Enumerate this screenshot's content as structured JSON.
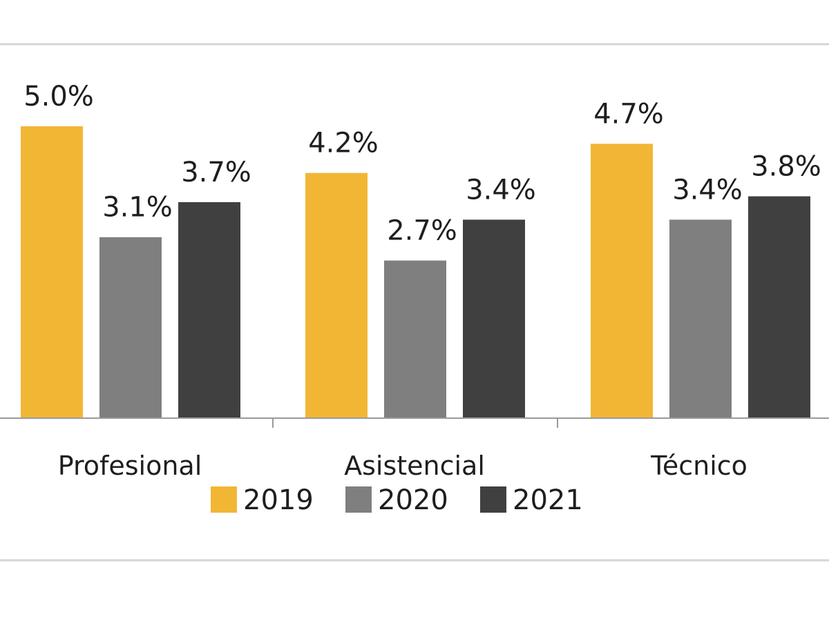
{
  "chart_data": {
    "type": "bar",
    "title": "",
    "xlabel": "",
    "ylabel": "",
    "ylim": [
      0,
      5.5
    ],
    "grid": false,
    "legend_position": "bottom",
    "categories": [
      "Profesional",
      "Asistencial",
      "Técnico"
    ],
    "series": [
      {
        "name": "2019",
        "color": "#F2B635",
        "values": [
          5.0,
          4.2,
          4.7
        ],
        "labels": [
          "5.0%",
          "4.2%",
          "4.7%"
        ]
      },
      {
        "name": "2020",
        "color": "#7F7F7F",
        "values": [
          3.1,
          2.7,
          3.4
        ],
        "labels": [
          "3.1%",
          "2.7%",
          "3.4%"
        ]
      },
      {
        "name": "2021",
        "color": "#404040",
        "values": [
          3.7,
          3.4,
          3.8
        ],
        "labels": [
          "3.7%",
          "3.4%",
          "3.8%"
        ]
      }
    ]
  }
}
